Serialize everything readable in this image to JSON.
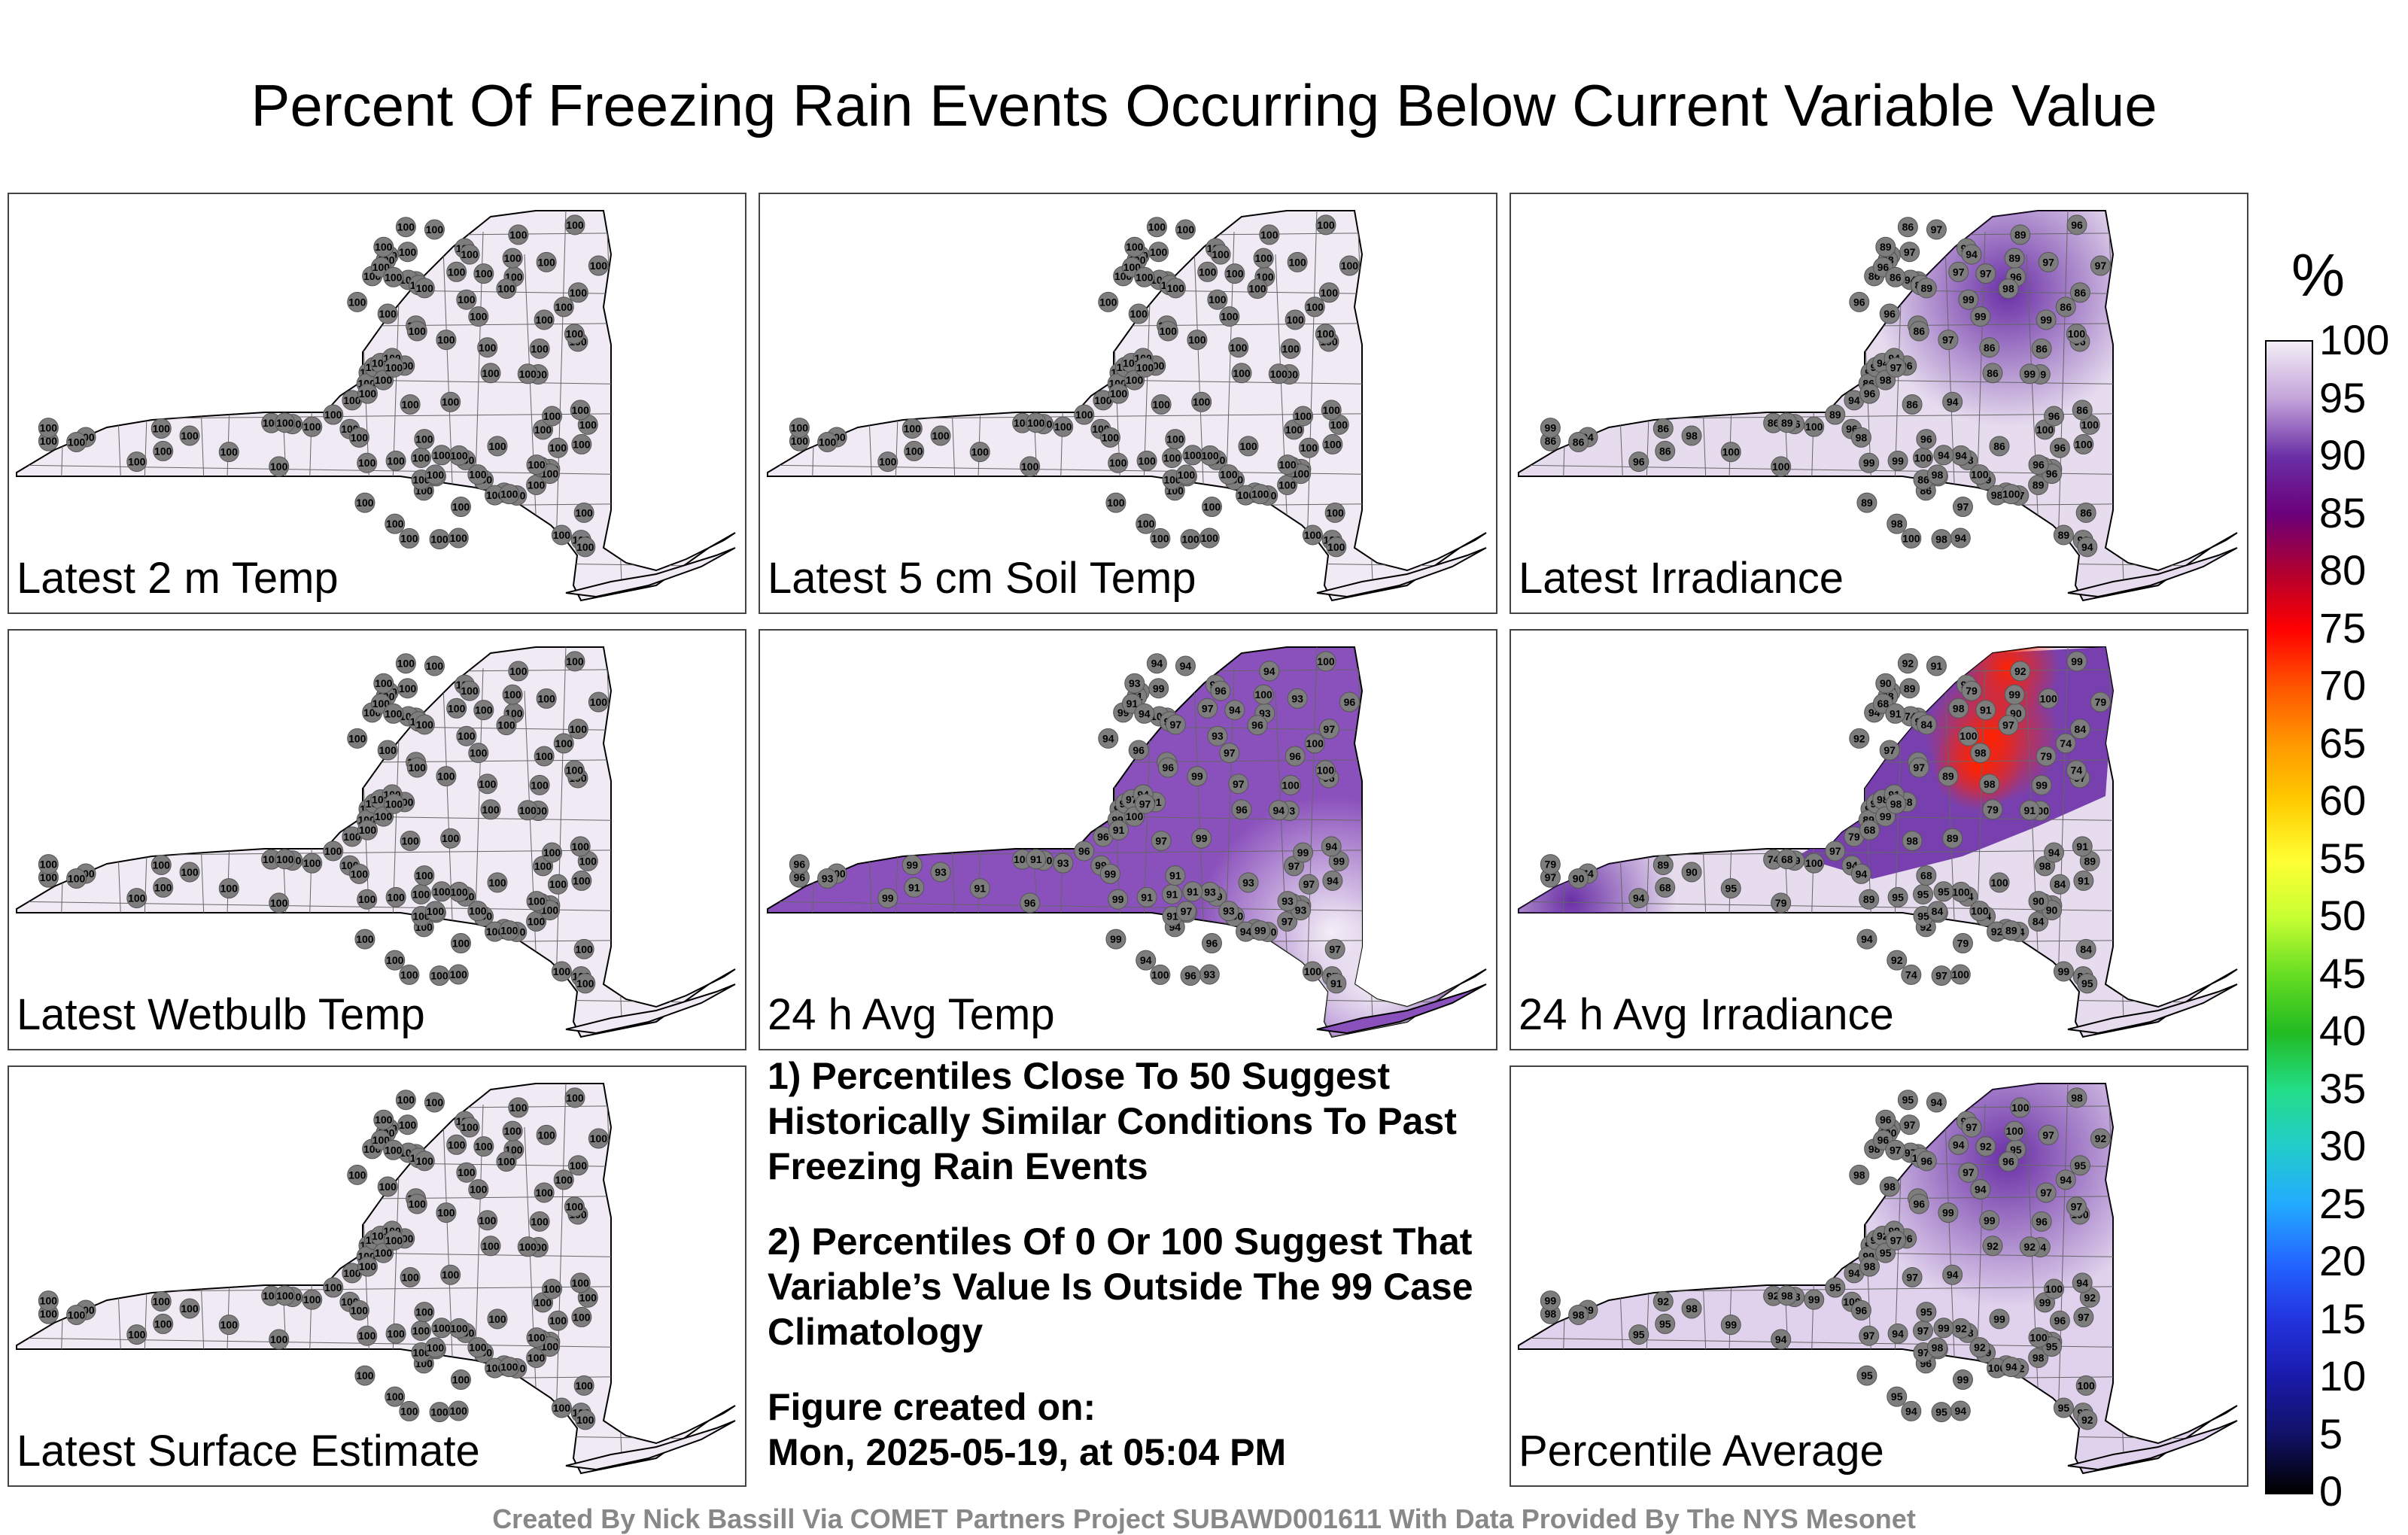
{
  "title": "Percent Of Freezing Rain Events Occurring Below Current Variable Value",
  "panels": [
    {
      "label": "Latest 2 m Temp",
      "mode": "uniform",
      "fill": "#efeaf3",
      "values": [
        "100"
      ]
    },
    {
      "label": "Latest 5 cm Soil Temp",
      "mode": "uniform",
      "fill": "#efeaf3",
      "values": [
        "100"
      ]
    },
    {
      "label": "Latest Irradiance",
      "mode": "gradient",
      "fill": "#e6dcee",
      "blobs": [
        {
          "color": "#8a5cc0",
          "at": "northeast"
        }
      ],
      "values": [
        "100",
        "96",
        "97",
        "89",
        "94",
        "86",
        "86",
        "96",
        "99",
        "98"
      ]
    },
    {
      "label": "Latest Wetbulb Temp",
      "mode": "uniform",
      "fill": "#efeaf3",
      "values": [
        "100"
      ]
    },
    {
      "label": "24 h Avg Temp",
      "mode": "purple",
      "fill": "#8a50bc",
      "values": [
        "93",
        "94",
        "99",
        "91",
        "96",
        "97",
        "100"
      ]
    },
    {
      "label": "24 h Avg Irradiance",
      "mode": "hot",
      "fill": "#e6dcee",
      "values": [
        "100",
        "92",
        "89",
        "68",
        "79",
        "84",
        "74",
        "90",
        "91",
        "94",
        "95",
        "97",
        "98",
        "99"
      ]
    },
    {
      "label": "Latest Surface Estimate",
      "mode": "uniform",
      "fill": "#efeaf3",
      "values": [
        "100"
      ]
    },
    {
      "label": "Percentile Average",
      "mode": "avg",
      "fill": "#e0d2ec",
      "values": [
        "99",
        "98",
        "97",
        "100",
        "94",
        "95",
        "92",
        "96"
      ]
    }
  ],
  "notes": [
    "1) Percentiles Close To 50 Suggest Historically Similar Conditions To Past Freezing Rain Events",
    "2) Percentiles Of 0 Or 100 Suggest That Variable’s Value Is Outside The 99 Case Climatology"
  ],
  "created_label": "Figure created on:",
  "created_date": "Mon, 2025-05-19, at 05:04 PM",
  "colorbar": {
    "unit": "%",
    "ticks": [
      "100",
      "95",
      "90",
      "85",
      "80",
      "75",
      "70",
      "65",
      "60",
      "55",
      "50",
      "45",
      "40",
      "35",
      "30",
      "25",
      "20",
      "15",
      "10",
      "5",
      "0"
    ],
    "stops": [
      "#f3eef6",
      "#c3a3d9",
      "#6a2fa6",
      "#6b007a",
      "#b00030",
      "#ff0000",
      "#ff5500",
      "#ff9900",
      "#ffcc00",
      "#ffff33",
      "#c8ff33",
      "#66dd22",
      "#22bb22",
      "#22dd88",
      "#22cccc",
      "#22aaff",
      "#2266ff",
      "#2233dd",
      "#1a1aaa",
      "#111166",
      "#000000"
    ]
  },
  "credit": "Created By Nick Bassill Via COMET Partners Project SUBAWD001611 With Data Provided By The NYS Mesonet"
}
